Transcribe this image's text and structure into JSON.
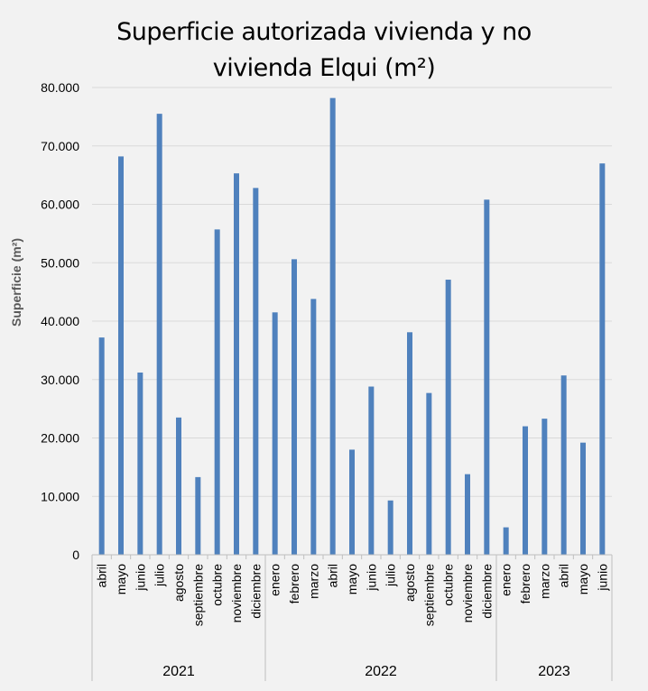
{
  "chart_data": {
    "type": "bar",
    "title_lines": [
      "Superficie autorizada vivienda y no",
      "vivienda Elqui (m²)"
    ],
    "ylabel": "Superficie  (m²)",
    "xlabel": "",
    "ylim": [
      0,
      80000
    ],
    "y_ticks": [
      {
        "value": 0,
        "label": "0"
      },
      {
        "value": 10000,
        "label": "10.000"
      },
      {
        "value": 20000,
        "label": "20.000"
      },
      {
        "value": 30000,
        "label": "30.000"
      },
      {
        "value": 40000,
        "label": "40.000"
      },
      {
        "value": 50000,
        "label": "50.000"
      },
      {
        "value": 60000,
        "label": "60.000"
      },
      {
        "value": 70000,
        "label": "70.000"
      },
      {
        "value": 80000,
        "label": "80.000"
      }
    ],
    "grid": true,
    "bar_color": "#4f81bd",
    "groups": [
      {
        "year": "2021",
        "months": [
          "abril",
          "mayo",
          "junio",
          "julio",
          "agosto",
          "septiembre",
          "octubre",
          "noviembre",
          "diciembre"
        ],
        "values": [
          37200,
          68200,
          31200,
          75500,
          23500,
          13300,
          55700,
          65300,
          62800
        ]
      },
      {
        "year": "2022",
        "months": [
          "enero",
          "febrero",
          "marzo",
          "abril",
          "mayo",
          "junio",
          "julio",
          "agosto",
          "septiembre",
          "octubre",
          "noviembre",
          "diciembre"
        ],
        "values": [
          41500,
          50600,
          43800,
          78200,
          18000,
          28800,
          9300,
          38100,
          27700,
          47100,
          13800,
          60800
        ]
      },
      {
        "year": "2023",
        "months": [
          "enero",
          "febrero",
          "marzo",
          "abril",
          "mayo",
          "junio"
        ],
        "values": [
          4700,
          22000,
          23300,
          30700,
          19200,
          67000
        ]
      }
    ]
  }
}
